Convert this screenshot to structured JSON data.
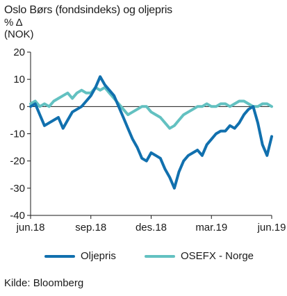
{
  "header": {
    "title": "Oslo Børs (fondsindeks) og oljepris",
    "unit_line1": "% Δ",
    "unit_line2": "(NOK)"
  },
  "source": "Kilde: Bloomberg",
  "chart_data": {
    "type": "line",
    "title": "Oslo Børs (fondsindeks) og oljepris",
    "ylabel": "% Δ (NOK)",
    "xlabel": "",
    "ylim": [
      -40,
      20
    ],
    "yticks": [
      20,
      10,
      0,
      -10,
      -20,
      -30,
      -40
    ],
    "x_ticks": [
      "jun.18",
      "sep.18",
      "des.18",
      "mar.19",
      "jun.19"
    ],
    "x_tick_index": [
      0,
      13,
      26,
      39,
      52
    ],
    "grid": false,
    "reference_line": 0,
    "legend_position": "bottom",
    "x": [
      "2018-06-01",
      "2018-06-08",
      "2018-06-15",
      "2018-06-22",
      "2018-06-29",
      "2018-07-06",
      "2018-07-13",
      "2018-07-20",
      "2018-07-27",
      "2018-08-03",
      "2018-08-10",
      "2018-08-17",
      "2018-08-24",
      "2018-08-31",
      "2018-09-07",
      "2018-09-14",
      "2018-09-21",
      "2018-09-28",
      "2018-10-05",
      "2018-10-12",
      "2018-10-19",
      "2018-10-26",
      "2018-11-02",
      "2018-11-09",
      "2018-11-16",
      "2018-11-23",
      "2018-11-30",
      "2018-12-07",
      "2018-12-14",
      "2018-12-21",
      "2018-12-28",
      "2019-01-04",
      "2019-01-11",
      "2019-01-18",
      "2019-01-25",
      "2019-02-01",
      "2019-02-08",
      "2019-02-15",
      "2019-02-22",
      "2019-03-01",
      "2019-03-08",
      "2019-03-15",
      "2019-03-22",
      "2019-03-29",
      "2019-04-05",
      "2019-04-12",
      "2019-04-19",
      "2019-04-26",
      "2019-05-03",
      "2019-05-10",
      "2019-05-17",
      "2019-05-24",
      "2019-05-31"
    ],
    "series": [
      {
        "name": "Oljepris",
        "color": "#1170ae",
        "values": [
          0,
          1,
          -3,
          -7,
          -6,
          -5,
          -4,
          -8,
          -5,
          -2,
          -1,
          0,
          2,
          4,
          7,
          11,
          8,
          6,
          4,
          0,
          -4,
          -8,
          -12,
          -15,
          -19,
          -20,
          -17,
          -18,
          -19,
          -23,
          -26,
          -30,
          -24,
          -20,
          -18,
          -17,
          -16,
          -18,
          -14,
          -12,
          -10,
          -9,
          -9,
          -7,
          -8,
          -6,
          -3,
          -1,
          0,
          -6,
          -14,
          -18,
          -11
        ]
      },
      {
        "name": "OSEFX - Norge",
        "color": "#63c1c1",
        "values": [
          1,
          2,
          0,
          1,
          0,
          2,
          3,
          4,
          5,
          3,
          5,
          6,
          5,
          5,
          7,
          6,
          7,
          5,
          3,
          1,
          -1,
          -3,
          -2,
          -1,
          0,
          0,
          -2,
          -3,
          -4,
          -6,
          -8,
          -7,
          -5,
          -3,
          -2,
          -1,
          0,
          0,
          1,
          0,
          0,
          1,
          1,
          0,
          1,
          2,
          2,
          1,
          0,
          0,
          1,
          1,
          0
        ]
      }
    ]
  }
}
